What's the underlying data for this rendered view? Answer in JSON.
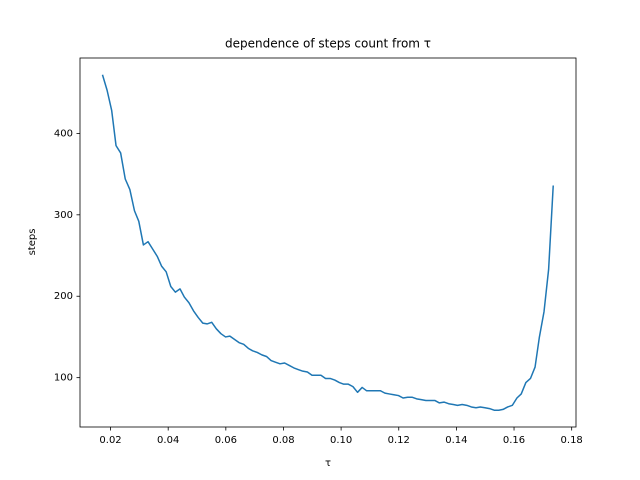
{
  "chart_data": {
    "type": "line",
    "title": "dependence of steps count from τ",
    "xlabel": "τ",
    "ylabel": "steps",
    "color": "#1f77b4",
    "grid": false,
    "xlim": [
      0.0094,
      0.1815
    ],
    "ylim": [
      39.4,
      492.6
    ],
    "xticks": [
      0.02,
      0.04,
      0.06,
      0.08,
      {
        "value": 0.1,
        "label": "0.10"
      },
      0.12,
      0.14,
      0.16,
      0.18
    ],
    "yticks": [
      100,
      200,
      300,
      400
    ],
    "x": [
      0.0172,
      0.0188,
      0.0204,
      0.0219,
      0.0235,
      0.0251,
      0.0267,
      0.0283,
      0.0298,
      0.0314,
      0.033,
      0.0346,
      0.0362,
      0.0377,
      0.0393,
      0.0409,
      0.0425,
      0.0441,
      0.0456,
      0.0472,
      0.0488,
      0.0504,
      0.052,
      0.0535,
      0.0551,
      0.0567,
      0.0583,
      0.0599,
      0.0614,
      0.063,
      0.0646,
      0.0662,
      0.0678,
      0.0693,
      0.0709,
      0.0725,
      0.0741,
      0.0757,
      0.0772,
      0.0788,
      0.0804,
      0.082,
      0.0836,
      0.0851,
      0.0867,
      0.0883,
      0.0899,
      0.0915,
      0.093,
      0.0946,
      0.0962,
      0.0978,
      0.0994,
      0.1009,
      0.1025,
      0.1041,
      0.1057,
      0.1073,
      0.1088,
      0.1104,
      0.112,
      0.1136,
      0.1152,
      0.1167,
      0.1183,
      0.1199,
      0.1215,
      0.1231,
      0.1246,
      0.1262,
      0.1278,
      0.1294,
      0.131,
      0.1325,
      0.1341,
      0.1357,
      0.1373,
      0.1389,
      0.1404,
      0.142,
      0.1436,
      0.1452,
      0.1468,
      0.1483,
      0.1499,
      0.1515,
      0.1531,
      0.1547,
      0.1562,
      0.1578,
      0.1594,
      0.161,
      0.1625,
      0.1641,
      0.1657,
      0.1673,
      0.1688,
      0.1704,
      0.172,
      0.1736
    ],
    "values": [
      472,
      453,
      428,
      385,
      376,
      344,
      331,
      305,
      292,
      263,
      267,
      258,
      249,
      237,
      230,
      212,
      205,
      209,
      199,
      192,
      182,
      174,
      167,
      166,
      168,
      160,
      154,
      150,
      151,
      147,
      143,
      141,
      136,
      133,
      131,
      128,
      126,
      121,
      119,
      117,
      118,
      115,
      112,
      110,
      108,
      107,
      103,
      103,
      103,
      99,
      99,
      97,
      94,
      92,
      92,
      89,
      82,
      88,
      84,
      84,
      84,
      84,
      81,
      80,
      79,
      78,
      75,
      76,
      76,
      74,
      73,
      72,
      72,
      72,
      69,
      70,
      68,
      67,
      66,
      67,
      66,
      64,
      63,
      64,
      63,
      62,
      60,
      60,
      61,
      64,
      66,
      75,
      80,
      94,
      99,
      113,
      150,
      181,
      233,
      336
    ]
  }
}
